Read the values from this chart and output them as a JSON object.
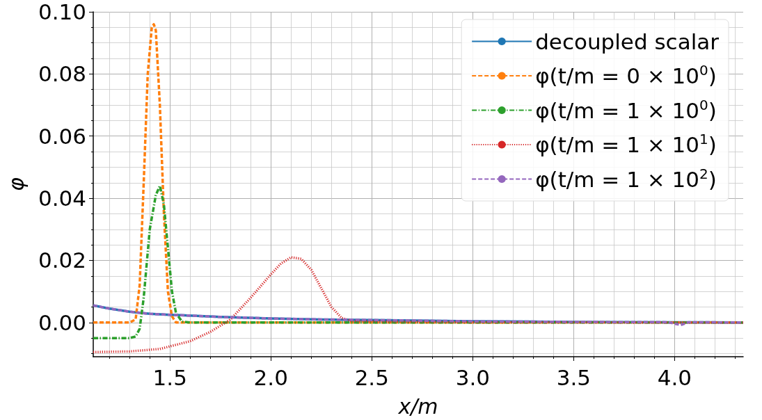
{
  "chart_data": {
    "type": "line",
    "xlabel": "x/m",
    "ylabel": "φ",
    "xlim": [
      1.12,
      4.34
    ],
    "xticks": [
      1.5,
      {
        "value": 2,
        "label": "2.0"
      },
      2.5,
      {
        "value": 3,
        "label": "3.0"
      },
      3.5,
      {
        "value": 4,
        "label": "4.0"
      }
    ],
    "ylim": [
      -0.011,
      0.1
    ],
    "yticks": [
      {
        "value": 0,
        "label": "0.00"
      },
      0.02,
      0.04,
      0.06,
      0.08,
      {
        "value": 0.1,
        "label": "0.10"
      }
    ],
    "grid": true,
    "legend": "top right",
    "marker": "none",
    "series": [
      {
        "name": "decoupled scalar",
        "color": "#1f77b4",
        "line_style": "solid",
        "x": [
          1.12,
          1.2,
          1.3,
          1.4,
          1.5,
          1.75,
          2.0,
          2.25,
          2.5,
          3.0,
          3.5,
          4.0,
          4.34
        ],
        "values": [
          0.0055,
          0.0045,
          0.0035,
          0.0028,
          0.0025,
          0.0018,
          0.0013,
          0.001,
          0.0008,
          0.0004,
          0.0002,
          0.0001,
          0.0
        ]
      },
      {
        "name": "φ(t/m = 0 × 10$^{0}$)",
        "color": "#ff7f0e",
        "line_style": "dashed",
        "x": [
          1.12,
          1.3,
          1.33,
          1.35,
          1.37,
          1.39,
          1.41,
          1.42,
          1.43,
          1.45,
          1.47,
          1.49,
          1.51,
          1.53,
          1.6,
          2.0,
          3.0,
          4.34
        ],
        "values": [
          0.0,
          0.0,
          0.001,
          0.012,
          0.045,
          0.08,
          0.095,
          0.096,
          0.094,
          0.07,
          0.035,
          0.01,
          0.002,
          0.0,
          0.0,
          0.0,
          0.0,
          0.0
        ]
      },
      {
        "name": "φ(t/m = 1 × 10$^{0}$)",
        "color": "#2ca02c",
        "line_style": "dashdot",
        "x": [
          1.12,
          1.3,
          1.33,
          1.35,
          1.37,
          1.4,
          1.43,
          1.45,
          1.47,
          1.49,
          1.51,
          1.53,
          1.56,
          1.6,
          2.0,
          3.0,
          4.34
        ],
        "values": [
          -0.005,
          -0.005,
          -0.0045,
          -0.002,
          0.008,
          0.03,
          0.041,
          0.044,
          0.038,
          0.024,
          0.01,
          0.003,
          0.0003,
          0.0,
          0.0,
          0.0,
          0.0
        ]
      },
      {
        "name": "φ(t/m = 1 × 10$^{1}$)",
        "color": "#d62728",
        "line_style": "dotted",
        "x": [
          1.12,
          1.3,
          1.45,
          1.6,
          1.7,
          1.8,
          1.9,
          2.0,
          2.05,
          2.1,
          2.15,
          2.2,
          2.25,
          2.3,
          2.35,
          2.4,
          2.6,
          3.0,
          4.34
        ],
        "values": [
          -0.0095,
          -0.0093,
          -0.0085,
          -0.006,
          -0.003,
          0.001,
          0.008,
          0.0155,
          0.019,
          0.021,
          0.0205,
          0.017,
          0.011,
          0.005,
          0.0015,
          0.0005,
          0.0003,
          0.0001,
          0.0
        ]
      },
      {
        "name": "φ(t/m = 1 × 10$^{2}$)",
        "color": "#9467bd",
        "line_style": "dashed",
        "x": [
          1.12,
          1.2,
          1.3,
          1.4,
          1.5,
          1.75,
          2.0,
          2.25,
          2.5,
          3.0,
          3.5,
          3.97,
          4.03,
          4.07,
          4.34
        ],
        "values": [
          0.0055,
          0.0045,
          0.0035,
          0.0028,
          0.0025,
          0.0018,
          0.0013,
          0.001,
          0.0008,
          0.0004,
          0.0002,
          0.0001,
          -0.0008,
          0.0001,
          0.0
        ]
      }
    ]
  }
}
